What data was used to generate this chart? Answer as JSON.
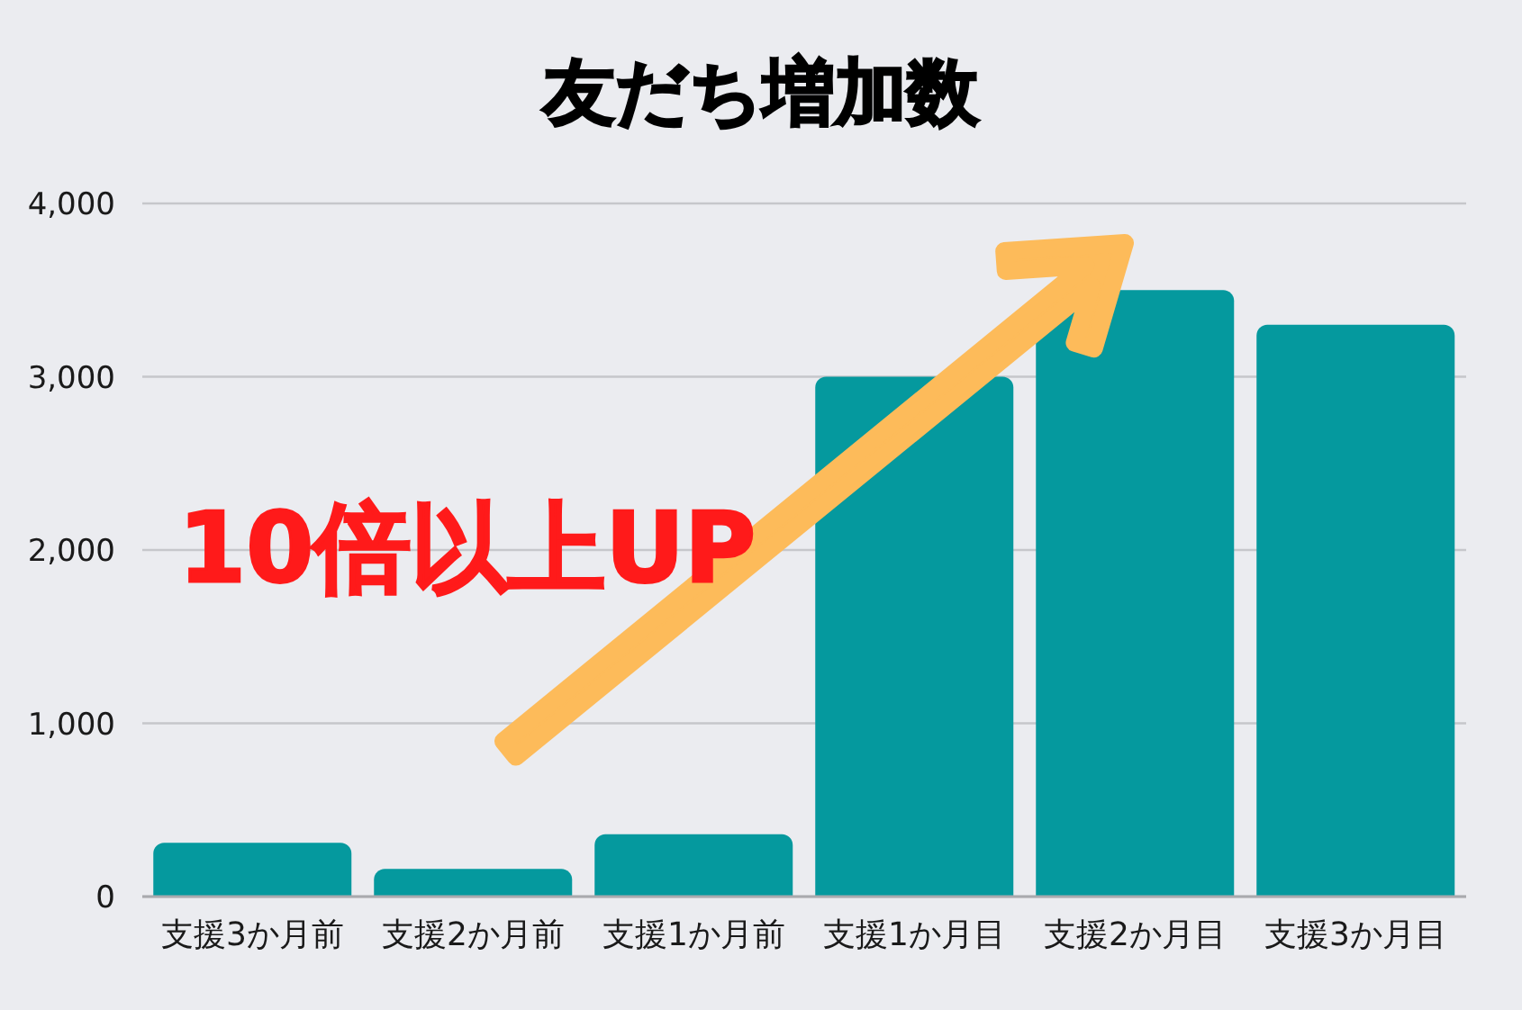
{
  "chart_data": {
    "type": "bar",
    "title": "友だち増加数",
    "categories": [
      "支援3か月前",
      "支援2か月前",
      "支援1か月前",
      "支援1か月目",
      "支援2か月目",
      "支援3か月目"
    ],
    "values": [
      310,
      160,
      360,
      3000,
      3500,
      3300
    ],
    "color": "#05999e",
    "ylim": [
      0,
      4000
    ],
    "yticks": [
      0,
      {
        "value": 1000,
        "label": "1,000"
      },
      {
        "value": 2000,
        "label": "2,000"
      },
      {
        "value": 3000,
        "label": "3,000"
      },
      {
        "value": 4000,
        "label": "4,000"
      }
    ],
    "grid": "y",
    "annotations": [
      "10倍以上UP"
    ]
  }
}
